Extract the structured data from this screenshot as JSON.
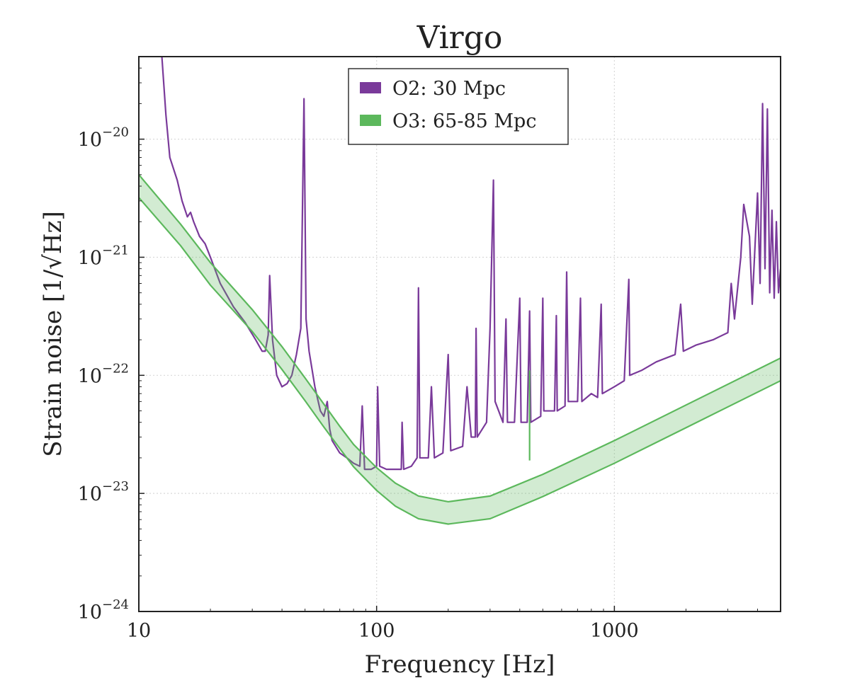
{
  "chart_data": {
    "type": "line",
    "title": "Virgo",
    "xlabel": "Frequency [Hz]",
    "ylabel": "Strain noise [1/√Hz]",
    "xscale": "log",
    "yscale": "log",
    "xlim": [
      10,
      5000
    ],
    "ylim": [
      1e-24,
      5e-20
    ],
    "x_ticks": [
      {
        "value": 10,
        "label": "10"
      },
      {
        "value": 100,
        "label": "100"
      },
      {
        "value": 1000,
        "label": "1000"
      }
    ],
    "y_ticks": [
      {
        "value": 1e-24,
        "base": "10",
        "exp": "−24"
      },
      {
        "value": 1e-23,
        "base": "10",
        "exp": "−23"
      },
      {
        "value": 1e-22,
        "base": "10",
        "exp": "−22"
      },
      {
        "value": 1e-21,
        "base": "10",
        "exp": "−21"
      },
      {
        "value": 1e-20,
        "base": "10",
        "exp": "−20"
      }
    ],
    "grid": true,
    "legend": {
      "placement": "top-center",
      "entries": [
        {
          "label": "O2: 30 Mpc",
          "color": "#7a3a9a"
        },
        {
          "label": "O3: 65-85 Mpc",
          "color": "#5cb85c"
        }
      ]
    },
    "series": [
      {
        "name": "O2: 30 Mpc",
        "color": "#7a3a9a",
        "kind": "line",
        "points": [
          [
            12.5,
            5e-20
          ],
          [
            13,
            1.6e-20
          ],
          [
            13.5,
            7e-21
          ],
          [
            14.5,
            4.5e-21
          ],
          [
            15.2,
            3e-21
          ],
          [
            16,
            2.2e-21
          ],
          [
            16.5,
            2.4e-21
          ],
          [
            17,
            2e-21
          ],
          [
            18,
            1.5e-21
          ],
          [
            19,
            1.3e-21
          ],
          [
            20,
            1e-21
          ],
          [
            22,
            6e-22
          ],
          [
            25,
            3.8e-22
          ],
          [
            28,
            2.8e-22
          ],
          [
            31,
            2e-22
          ],
          [
            33,
            1.6e-22
          ],
          [
            34,
            1.6e-22
          ],
          [
            35,
            2.2e-22
          ],
          [
            35.5,
            7e-22
          ],
          [
            36.5,
            2e-22
          ],
          [
            38,
            1e-22
          ],
          [
            40,
            8e-23
          ],
          [
            42,
            8.5e-23
          ],
          [
            44,
            1e-22
          ],
          [
            46,
            1.5e-22
          ],
          [
            48,
            2.5e-22
          ],
          [
            49.5,
            2.2e-20
          ],
          [
            50.5,
            3e-22
          ],
          [
            52,
            1.6e-22
          ],
          [
            55,
            8e-23
          ],
          [
            58,
            5e-23
          ],
          [
            60,
            4.5e-23
          ],
          [
            62,
            6e-23
          ],
          [
            63.5,
            3.5e-23
          ],
          [
            65,
            2.8e-23
          ],
          [
            70,
            2.2e-23
          ],
          [
            75,
            2e-23
          ],
          [
            80,
            1.8e-23
          ],
          [
            85,
            1.7e-23
          ],
          [
            87,
            5.5e-23
          ],
          [
            89,
            1.6e-23
          ],
          [
            95,
            1.6e-23
          ],
          [
            100,
            1.7e-23
          ],
          [
            101,
            8e-23
          ],
          [
            103,
            1.7e-23
          ],
          [
            110,
            1.6e-23
          ],
          [
            120,
            1.6e-23
          ],
          [
            127,
            1.6e-23
          ],
          [
            128,
            4e-23
          ],
          [
            130,
            1.6e-23
          ],
          [
            140,
            1.7e-23
          ],
          [
            148,
            2e-23
          ],
          [
            150,
            5.5e-22
          ],
          [
            152,
            2e-23
          ],
          [
            165,
            2e-23
          ],
          [
            170,
            8e-23
          ],
          [
            175,
            2e-23
          ],
          [
            190,
            2.2e-23
          ],
          [
            200,
            1.5e-22
          ],
          [
            205,
            2.3e-23
          ],
          [
            230,
            2.5e-23
          ],
          [
            240,
            8e-23
          ],
          [
            250,
            3e-23
          ],
          [
            260,
            3e-23
          ],
          [
            262,
            2.5e-22
          ],
          [
            265,
            3e-23
          ],
          [
            290,
            4e-23
          ],
          [
            300,
            2.5e-22
          ],
          [
            310,
            4.5e-21
          ],
          [
            315,
            6e-23
          ],
          [
            340,
            4e-23
          ],
          [
            350,
            3e-22
          ],
          [
            355,
            4e-23
          ],
          [
            380,
            4e-23
          ],
          [
            400,
            4.5e-22
          ],
          [
            405,
            4e-23
          ],
          [
            430,
            4e-23
          ],
          [
            440,
            3.5e-22
          ],
          [
            445,
            4e-23
          ],
          [
            490,
            4.5e-23
          ],
          [
            500,
            4.5e-22
          ],
          [
            505,
            5e-23
          ],
          [
            560,
            5e-23
          ],
          [
            570,
            3.2e-22
          ],
          [
            575,
            5e-23
          ],
          [
            620,
            5.5e-23
          ],
          [
            630,
            7.5e-22
          ],
          [
            640,
            6e-23
          ],
          [
            700,
            6e-23
          ],
          [
            720,
            4.5e-22
          ],
          [
            730,
            6e-23
          ],
          [
            800,
            7e-23
          ],
          [
            850,
            6.5e-23
          ],
          [
            880,
            4e-22
          ],
          [
            890,
            7e-23
          ],
          [
            1000,
            8e-23
          ],
          [
            1100,
            9e-23
          ],
          [
            1150,
            6.5e-22
          ],
          [
            1160,
            1e-22
          ],
          [
            1300,
            1.1e-22
          ],
          [
            1500,
            1.3e-22
          ],
          [
            1800,
            1.5e-22
          ],
          [
            1900,
            4e-22
          ],
          [
            1950,
            1.6e-22
          ],
          [
            2200,
            1.8e-22
          ],
          [
            2600,
            2e-22
          ],
          [
            3000,
            2.3e-22
          ],
          [
            3100,
            6e-22
          ],
          [
            3200,
            3e-22
          ],
          [
            3400,
            1e-21
          ],
          [
            3500,
            2.8e-21
          ],
          [
            3700,
            1.5e-21
          ],
          [
            3800,
            4e-22
          ],
          [
            4000,
            3.5e-21
          ],
          [
            4100,
            6e-22
          ],
          [
            4200,
            2e-20
          ],
          [
            4300,
            8e-22
          ],
          [
            4400,
            1.8e-20
          ],
          [
            4500,
            5e-22
          ],
          [
            4600,
            2.5e-21
          ],
          [
            4700,
            4.5e-22
          ],
          [
            4800,
            2e-21
          ],
          [
            4900,
            5e-22
          ],
          [
            5000,
            8e-22
          ]
        ]
      },
      {
        "name": "O3: 65-85 Mpc",
        "color": "#5cb85c",
        "kind": "band",
        "x": [
          10,
          15,
          20,
          30,
          40,
          50,
          60,
          70,
          80,
          100,
          120,
          150,
          200,
          300,
          500,
          1000,
          2000,
          5000
        ],
        "upper": [
          5e-21,
          1.9e-21,
          9e-22,
          3.6e-22,
          1.75e-22,
          9.5e-23,
          5.7e-23,
          3.7e-23,
          2.6e-23,
          1.65e-23,
          1.22e-23,
          9.5e-24,
          8.5e-24,
          9.5e-24,
          1.45e-23,
          2.8e-23,
          5.6e-23,
          1.4e-22
        ],
        "lower": [
          3.2e-21,
          1.25e-21,
          5.8e-22,
          2.35e-22,
          1.12e-22,
          6.1e-23,
          3.65e-23,
          2.4e-23,
          1.68e-23,
          1.06e-23,
          7.8e-24,
          6.1e-24,
          5.5e-24,
          6.1e-24,
          9.4e-24,
          1.8e-23,
          3.6e-23,
          9e-23
        ],
        "spike": {
          "x": 440,
          "from": 1.9e-23,
          "to": 1.1e-22
        }
      }
    ]
  }
}
